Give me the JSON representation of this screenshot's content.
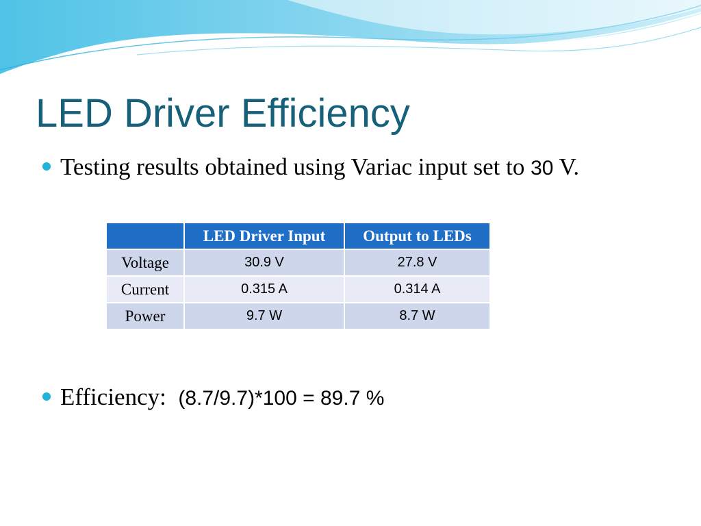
{
  "slide": {
    "title": "LED Driver Efficiency",
    "bullet_1": {
      "text_before": "Testing results obtained using Variac input set to ",
      "number": "30",
      "text_after": " V."
    },
    "table": {
      "headers": [
        "",
        "LED Driver Input",
        "Output to LEDs"
      ],
      "rows": [
        {
          "label": "Voltage",
          "input": "30.9 V",
          "output": "27.8 V"
        },
        {
          "label": "Current",
          "input": "0.315 A",
          "output": "0.314 A"
        },
        {
          "label": "Power",
          "input": "9.7 W",
          "output": "8.7 W"
        }
      ]
    },
    "bullet_2": {
      "label": "Efficiency:",
      "formula": "(8.7/9.7)*100 = 89.7 %"
    }
  },
  "colors": {
    "title": "#17607a",
    "bullet": "#1fb4d8",
    "table_header": "#1f6fc6",
    "table_row_dark": "#cdd6ea",
    "table_row_light": "#e8ebf5",
    "wave_primary": "#5fc6e8",
    "wave_light": "#bde8f6"
  }
}
